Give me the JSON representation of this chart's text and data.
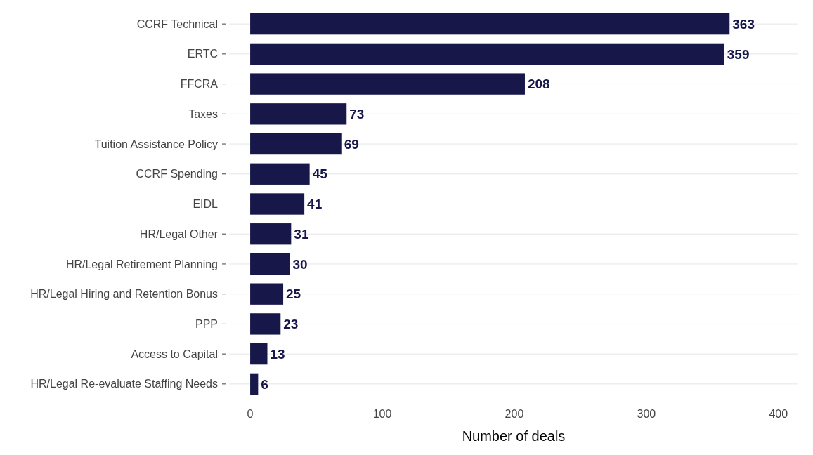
{
  "chart_data": {
    "type": "bar",
    "orientation": "horizontal",
    "xlabel": "Number of deals",
    "categories": [
      "CCRF Technical",
      "ERTC",
      "FFCRA",
      "Taxes",
      "Tuition Assistance Policy",
      "CCRF Spending",
      "EIDL",
      "HR/Legal Other",
      "HR/Legal Retirement Planning",
      "HR/Legal Hiring and Retention Bonus",
      "PPP",
      "Access to Capital",
      "HR/Legal Re-evaluate Staffing Needs"
    ],
    "values": [
      363,
      359,
      208,
      73,
      69,
      45,
      41,
      31,
      30,
      25,
      23,
      13,
      6
    ],
    "color": "#17174a",
    "data_labels": true,
    "grid": "y",
    "xlim": [
      -16,
      415
    ],
    "xticks": [
      0,
      100,
      200,
      300,
      400
    ]
  }
}
